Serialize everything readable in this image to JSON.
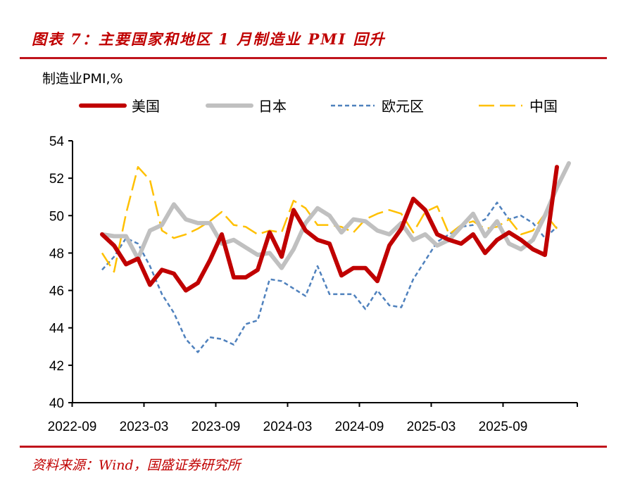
{
  "title": "图表 7：主要国家和地区 1 月制造业 PMI 回升",
  "source": "资料来源：Wind，国盛证券研究所",
  "chart_data": {
    "type": "line",
    "ylabel": "制造业PMI,%",
    "ylim": [
      40,
      54
    ],
    "yticks": [
      40,
      42,
      44,
      46,
      48,
      50,
      52,
      54
    ],
    "xticks": [
      "2022-09",
      "2023-03",
      "2023-09",
      "2024-03",
      "2024-09",
      "2025-03",
      "2025-09"
    ],
    "grid": false,
    "legend": "top",
    "x": [
      "2022-11",
      "2022-12",
      "2023-01",
      "2023-02",
      "2023-03",
      "2023-04",
      "2023-05",
      "2023-06",
      "2023-07",
      "2023-08",
      "2023-09",
      "2023-10",
      "2023-11",
      "2023-12",
      "2024-01",
      "2024-02",
      "2024-03",
      "2024-04",
      "2024-05",
      "2024-06",
      "2024-07",
      "2024-08",
      "2024-09",
      "2024-10",
      "2024-11",
      "2024-12",
      "2025-01",
      "2025-02",
      "2025-03",
      "2025-04",
      "2025-05",
      "2025-06",
      "2025-07",
      "2025-08",
      "2025-09",
      "2025-10",
      "2025-11",
      "2025-12",
      "2026-01",
      "2026-02"
    ],
    "series": [
      {
        "name": "美国",
        "color": "#c00000",
        "style": "solid-thick",
        "values": [
          49.0,
          48.4,
          47.4,
          47.7,
          46.3,
          47.1,
          46.9,
          46.0,
          46.4,
          47.6,
          49.0,
          46.7,
          46.7,
          47.1,
          49.1,
          47.8,
          50.3,
          49.2,
          48.7,
          48.5,
          46.8,
          47.2,
          47.2,
          46.5,
          48.4,
          49.3,
          50.9,
          50.3,
          49.0,
          48.7,
          48.5,
          49.0,
          48.0,
          48.7,
          49.1,
          48.7,
          48.2,
          47.9,
          52.6,
          null
        ]
      },
      {
        "name": "日本",
        "color": "#c0c0c0",
        "style": "solid-thick",
        "values": [
          49.0,
          48.9,
          48.9,
          47.7,
          49.2,
          49.5,
          50.6,
          49.8,
          49.6,
          49.6,
          48.5,
          48.7,
          48.3,
          47.9,
          48.0,
          47.2,
          48.2,
          49.6,
          50.4,
          50.0,
          49.1,
          49.8,
          49.7,
          49.2,
          49.0,
          49.6,
          48.7,
          49.0,
          48.4,
          48.7,
          49.4,
          50.1,
          48.9,
          49.7,
          48.5,
          48.2,
          48.7,
          50.0,
          51.5,
          52.8
        ]
      },
      {
        "name": "欧元区",
        "color": "#4f81bd",
        "style": "short-dash",
        "values": [
          47.1,
          47.8,
          48.8,
          48.5,
          47.3,
          45.8,
          44.8,
          43.4,
          42.7,
          43.5,
          43.4,
          43.1,
          44.2,
          44.4,
          46.6,
          46.5,
          46.1,
          45.7,
          47.3,
          45.8,
          45.8,
          45.8,
          45.0,
          46.0,
          45.2,
          45.1,
          46.6,
          47.6,
          48.6,
          49.0,
          49.4,
          49.5,
          49.8,
          50.7,
          49.8,
          50.0,
          49.6,
          48.8,
          49.4,
          null
        ]
      },
      {
        "name": "中国",
        "color": "#ffc000",
        "style": "long-dash",
        "values": [
          48.0,
          47.0,
          50.1,
          52.6,
          51.9,
          49.2,
          48.8,
          49.0,
          49.3,
          49.7,
          50.2,
          49.5,
          49.4,
          49.0,
          49.2,
          49.1,
          50.8,
          50.4,
          49.5,
          49.5,
          49.4,
          49.1,
          49.8,
          50.1,
          50.3,
          50.1,
          49.1,
          50.2,
          50.5,
          49.0,
          49.5,
          49.7,
          49.3,
          49.4,
          49.8,
          49.0,
          49.2,
          50.1,
          49.3,
          null
        ]
      }
    ]
  }
}
